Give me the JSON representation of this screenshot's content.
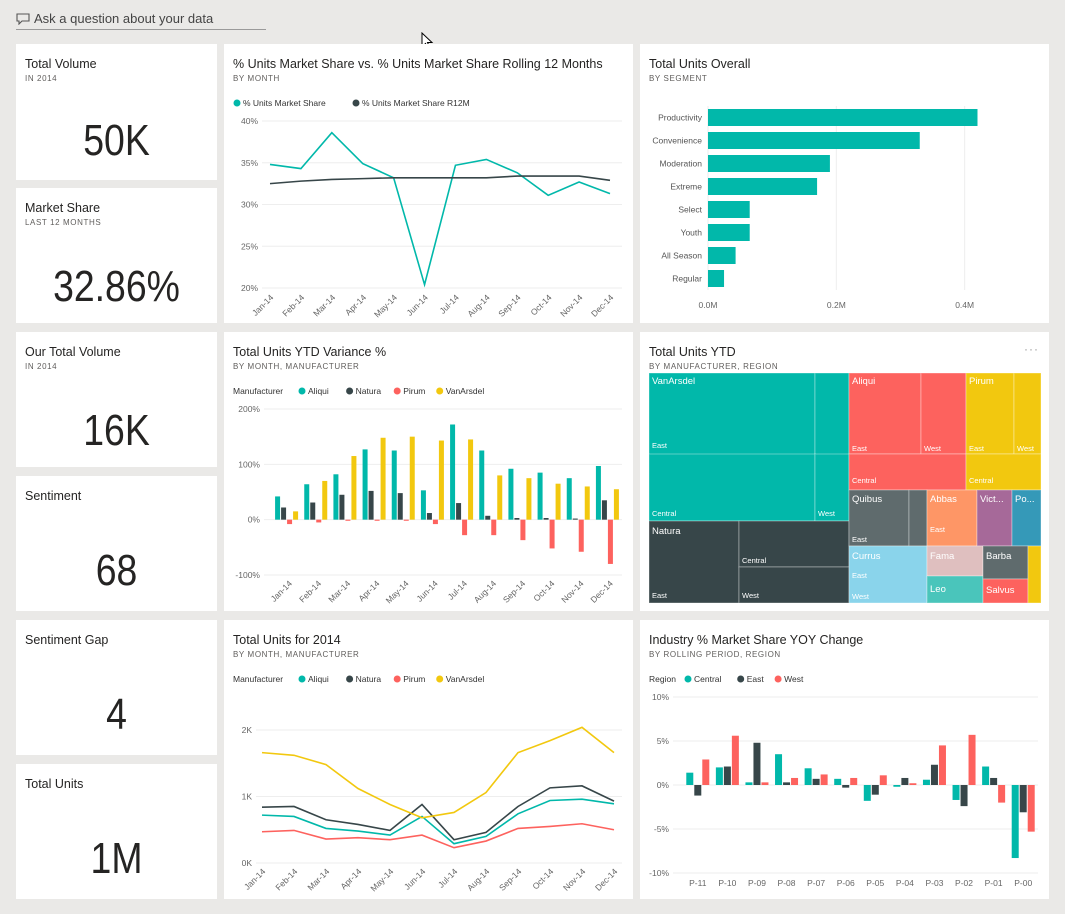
{
  "qa": {
    "placeholder": "Ask a question about your data"
  },
  "kpis": [
    {
      "title": "Total Volume",
      "subtitle": "IN 2014",
      "value": "50K"
    },
    {
      "title": "Market Share",
      "subtitle": "LAST 12 MONTHS",
      "value": "32.86%"
    },
    {
      "title": "Our Total Volume",
      "subtitle": "IN 2014",
      "value": "16K"
    },
    {
      "title": "Sentiment",
      "subtitle": "",
      "value": "68"
    },
    {
      "title": "Sentiment Gap",
      "subtitle": "",
      "value": "4"
    },
    {
      "title": "Total Units",
      "subtitle": "",
      "value": "1M"
    }
  ],
  "tiles": {
    "share_line": {
      "title": "% Units Market Share vs. % Units Market Share Rolling 12 Months",
      "subtitle": "BY MONTH"
    },
    "segment_bar": {
      "title": "Total Units Overall",
      "subtitle": "BY SEGMENT"
    },
    "ytd_variance": {
      "title": "Total Units YTD Variance %",
      "subtitle": "BY MONTH, MANUFACTURER"
    },
    "treemap": {
      "title": "Total Units YTD",
      "subtitle": "BY MANUFACTURER, REGION",
      "more": "···"
    },
    "units_2014": {
      "title": "Total Units for 2014",
      "subtitle": "BY MONTH, MANUFACTURER"
    },
    "industry_yoy": {
      "title": "Industry % Market Share YOY Change",
      "subtitle": "BY ROLLING PERIOD, REGION"
    }
  },
  "colors": {
    "teal": "#01b8aa",
    "dark": "#374649",
    "red": "#fd625e",
    "yellow": "#f2c80f",
    "gray": "#5f6b6d",
    "lightblue": "#8ad4eb",
    "orange": "#fe9666",
    "purple": "#a66999",
    "blue": "#3599b8",
    "pink": "#dfbfbf",
    "teal2": "#4ac5bb",
    "lightgray": "#5f6b6d"
  },
  "chart_data": [
    {
      "id": "share_line",
      "type": "line",
      "x": [
        "Jan-14",
        "Feb-14",
        "Mar-14",
        "Apr-14",
        "May-14",
        "Jun-14",
        "Jul-14",
        "Aug-14",
        "Sep-14",
        "Oct-14",
        "Nov-14",
        "Dec-14"
      ],
      "series": [
        {
          "name": "% Units Market Share",
          "color": "#01b8aa",
          "values": [
            34.8,
            34.3,
            38.6,
            34.9,
            33.2,
            20.4,
            34.7,
            35.4,
            33.8,
            31.1,
            32.7,
            31.3
          ]
        },
        {
          "name": "% Units Market Share R12M",
          "color": "#374649",
          "values": [
            32.5,
            32.8,
            33.0,
            33.1,
            33.2,
            33.2,
            33.2,
            33.2,
            33.4,
            33.4,
            33.4,
            32.9
          ]
        }
      ],
      "yticks": [
        "40%",
        "35%",
        "30%",
        "25%",
        "20%"
      ],
      "ylim": [
        20,
        40
      ]
    },
    {
      "id": "segment_bar",
      "type": "bar",
      "orientation": "horizontal",
      "categories": [
        "Productivity",
        "Convenience",
        "Moderation",
        "Extreme",
        "Select",
        "Youth",
        "All Season",
        "Regular"
      ],
      "values": [
        0.42,
        0.33,
        0.19,
        0.17,
        0.065,
        0.065,
        0.043,
        0.025
      ],
      "xticks": [
        "0.0M",
        "0.2M",
        "0.4M"
      ],
      "xlim": [
        0,
        0.4
      ]
    },
    {
      "id": "ytd_variance",
      "type": "bar",
      "legend_title": "Manufacturer",
      "categories": [
        "Jan-14",
        "Feb-14",
        "Mar-14",
        "Apr-14",
        "May-14",
        "Jun-14",
        "Jul-14",
        "Aug-14",
        "Sep-14",
        "Oct-14",
        "Nov-14",
        "Dec-14"
      ],
      "series": [
        {
          "name": "Aliqui",
          "color": "#01b8aa",
          "values": [
            42,
            64,
            82,
            127,
            125,
            53,
            172,
            125,
            92,
            85,
            75,
            97
          ]
        },
        {
          "name": "Natura",
          "color": "#374649",
          "values": [
            22,
            31,
            45,
            52,
            48,
            12,
            30,
            7,
            3,
            3,
            2,
            35
          ]
        },
        {
          "name": "Pirum",
          "color": "#fd625e",
          "values": [
            -8,
            -5,
            -2,
            -2,
            -2,
            -8,
            -28,
            -28,
            -37,
            -52,
            -58,
            -80
          ]
        },
        {
          "name": "VanArsdel",
          "color": "#f2c80f",
          "values": [
            15,
            70,
            115,
            148,
            150,
            143,
            145,
            80,
            75,
            65,
            60,
            55
          ]
        }
      ],
      "yticks": [
        "200%",
        "100%",
        "0%",
        "-100%"
      ],
      "ylim": [
        -100,
        200
      ]
    },
    {
      "id": "treemap",
      "type": "treemap",
      "labels": [
        "VanArsdel",
        "East",
        "Central",
        "West",
        "Aliqui",
        "East",
        "Central",
        "West",
        "Pirum",
        "East",
        "Central",
        "West",
        "Natura",
        "Central",
        "East",
        "West",
        "Quibus",
        "East",
        "Abbas",
        "East",
        "Vict...",
        "Po...",
        "Currus",
        "East",
        "West",
        "Fama",
        "Barba",
        "Leo",
        "Salvus"
      ]
    },
    {
      "id": "units_2014",
      "type": "line",
      "legend_title": "Manufacturer",
      "x": [
        "Jan-14",
        "Feb-14",
        "Mar-14",
        "Apr-14",
        "May-14",
        "Jun-14",
        "Jul-14",
        "Aug-14",
        "Sep-14",
        "Oct-14",
        "Nov-14",
        "Dec-14"
      ],
      "series": [
        {
          "name": "Aliqui",
          "color": "#01b8aa",
          "values": [
            720,
            700,
            520,
            480,
            420,
            700,
            290,
            400,
            740,
            940,
            960,
            890
          ]
        },
        {
          "name": "Natura",
          "color": "#374649",
          "values": [
            840,
            850,
            650,
            580,
            490,
            880,
            350,
            460,
            850,
            1130,
            1160,
            930
          ]
        },
        {
          "name": "Pirum",
          "color": "#fd625e",
          "values": [
            470,
            490,
            360,
            380,
            350,
            420,
            230,
            330,
            520,
            550,
            590,
            500
          ]
        },
        {
          "name": "VanArsdel",
          "color": "#f2c80f",
          "values": [
            1660,
            1620,
            1480,
            1120,
            880,
            680,
            760,
            1060,
            1660,
            1840,
            2040,
            1660
          ]
        }
      ],
      "yticks": [
        "2K",
        "1K",
        "0K"
      ],
      "ylim": [
        0,
        2000
      ]
    },
    {
      "id": "industry_yoy",
      "type": "bar",
      "legend_title": "Region",
      "categories": [
        "P-11",
        "P-10",
        "P-09",
        "P-08",
        "P-07",
        "P-06",
        "P-05",
        "P-04",
        "P-03",
        "P-02",
        "P-01",
        "P-00"
      ],
      "series": [
        {
          "name": "Central",
          "color": "#01b8aa",
          "values": [
            1.4,
            2.0,
            0.3,
            3.5,
            1.9,
            0.7,
            -1.8,
            -0.2,
            0.6,
            -1.7,
            2.1,
            -8.3
          ]
        },
        {
          "name": "East",
          "color": "#374649",
          "values": [
            -1.2,
            2.1,
            4.8,
            0.3,
            0.7,
            -0.3,
            -1.1,
            0.8,
            2.3,
            -2.4,
            0.8,
            -3.1
          ]
        },
        {
          "name": "West",
          "color": "#fd625e",
          "values": [
            2.9,
            5.6,
            0.3,
            0.8,
            1.2,
            0.8,
            1.1,
            0.2,
            4.5,
            5.7,
            -2.0,
            -5.3
          ]
        }
      ],
      "yticks": [
        "10%",
        "5%",
        "0%",
        "-5%",
        "-10%"
      ],
      "ylim": [
        -10,
        10
      ]
    }
  ]
}
